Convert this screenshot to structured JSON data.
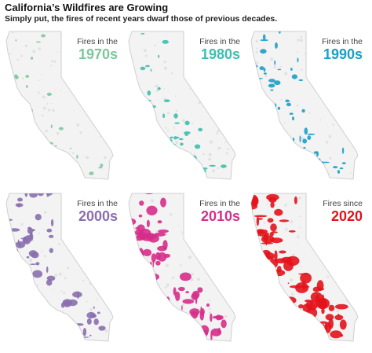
{
  "title": "California’s Wildfires are Growing",
  "subtitle": "Simply put, the fires of recent years dwarf those of previous decades.",
  "panels": [
    {
      "prefix": "Fires in the",
      "decade": "1970s",
      "color": "#7dc79b",
      "intensity": 1
    },
    {
      "prefix": "Fires in the",
      "decade": "1980s",
      "color": "#3dbfae",
      "intensity": 2
    },
    {
      "prefix": "Fires in the",
      "decade": "1990s",
      "color": "#1aa0c8",
      "intensity": 3
    },
    {
      "prefix": "Fires in the",
      "decade": "2000s",
      "color": "#8a6fae",
      "intensity": 4
    },
    {
      "prefix": "Fires in the",
      "decade": "2010s",
      "color": "#d62e8a",
      "intensity": 5
    },
    {
      "prefix": "Fires since",
      "decade": "2020",
      "color": "#e3131b",
      "intensity": 6
    }
  ]
}
